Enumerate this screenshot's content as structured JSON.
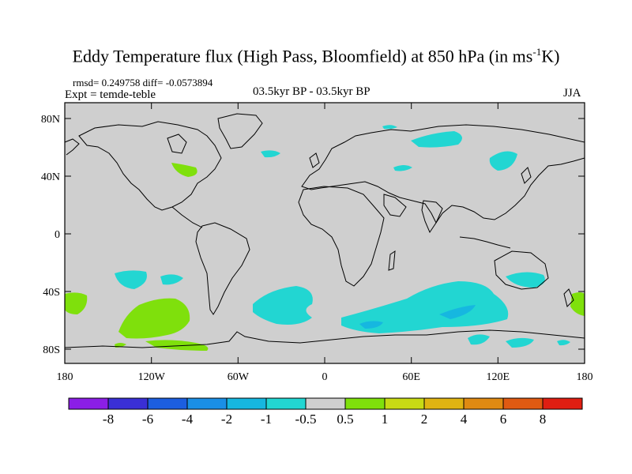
{
  "title": {
    "main": "Eddy Temperature flux (High Pass, Bloomfield) at 850 hPa (in ms",
    "superscript": "-1",
    "suffix": "K)"
  },
  "stats_text": "rmsd= 0.249758 diff= -0.0573894",
  "expt_text": "Expt = temde-teble",
  "center_label": "03.5kyr BP - 03.5kyr BP",
  "season_label": "JJA",
  "axes": {
    "x_ticks": [
      "180",
      "120W",
      "60W",
      "0",
      "60E",
      "120E",
      "180"
    ],
    "y_ticks": [
      "80N",
      "40N",
      "0",
      "40S",
      "80S"
    ]
  },
  "colorbar": {
    "labels": [
      "-8",
      "-6",
      "-4",
      "-2",
      "-1",
      "-0.5",
      "0.5",
      "1",
      "2",
      "4",
      "6",
      "8"
    ],
    "colors": [
      "#8b1ee6",
      "#3a2fd6",
      "#1c5ee0",
      "#1a8fe6",
      "#16b7e0",
      "#22d6d2",
      "#cfcfcf",
      "#7fe00c",
      "#c8da14",
      "#e0b412",
      "#e08a12",
      "#e05a12",
      "#e01e12"
    ]
  },
  "colors": {
    "land_background": "#cfcfcf",
    "coastline": "#000000",
    "negative_anomaly": "#22d6d2",
    "positive_anomaly": "#7fe00c"
  }
}
